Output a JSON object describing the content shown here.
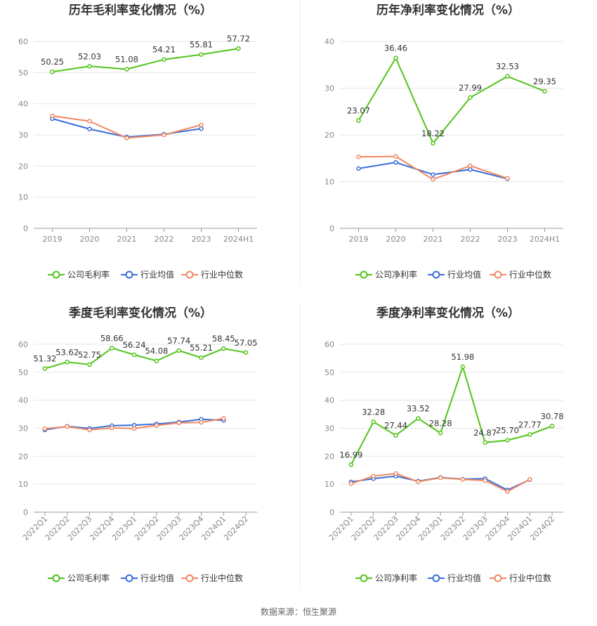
{
  "colors": {
    "company": "#52c41a",
    "industry_avg": "#3a6fd8",
    "industry_median": "#f08862"
  },
  "footer": {
    "source": "数据来源：恒生聚源"
  },
  "chart_data": [
    {
      "type": "line",
      "title": "历年毛利率变化情况（%）",
      "categories": [
        "2019",
        "2020",
        "2021",
        "2022",
        "2023",
        "2024H1"
      ],
      "ylim": [
        0,
        60
      ],
      "yticks": [
        0,
        10,
        20,
        30,
        40,
        50,
        60
      ],
      "grid": true,
      "legend_position": "bottom",
      "series": [
        {
          "name": "公司毛利率",
          "values": [
            50.25,
            52.03,
            51.08,
            54.21,
            55.81,
            57.72
          ],
          "labels": [
            "50.25",
            "52.03",
            "51.08",
            "54.21",
            "55.81",
            "57.72"
          ]
        },
        {
          "name": "行业均值",
          "values": [
            35.2,
            31.9,
            29.3,
            30.2,
            32.0,
            null
          ]
        },
        {
          "name": "行业中位数",
          "values": [
            36.1,
            34.4,
            29.0,
            30.0,
            33.2,
            null
          ]
        }
      ]
    },
    {
      "type": "line",
      "title": "历年净利率变化情况（%）",
      "categories": [
        "2019",
        "2020",
        "2021",
        "2022",
        "2023",
        "2024H1"
      ],
      "ylim": [
        0,
        40
      ],
      "yticks": [
        0,
        10,
        20,
        30,
        40
      ],
      "grid": true,
      "legend_position": "bottom",
      "series": [
        {
          "name": "公司净利率",
          "values": [
            23.07,
            36.46,
            18.22,
            27.99,
            32.53,
            29.35
          ],
          "labels": [
            "23.07",
            "36.46",
            "18.22",
            "27.99",
            "32.53",
            "29.35"
          ]
        },
        {
          "name": "行业均值",
          "values": [
            12.8,
            14.1,
            11.5,
            12.6,
            10.6,
            null
          ]
        },
        {
          "name": "行业中位数",
          "values": [
            15.3,
            15.4,
            10.5,
            13.4,
            10.7,
            null
          ]
        }
      ]
    },
    {
      "type": "line",
      "title": "季度毛利率变化情况（%）",
      "categories": [
        "2022Q1",
        "2022Q2",
        "2022Q3",
        "2022Q4",
        "2023Q1",
        "2023Q2",
        "2023Q3",
        "2023Q4",
        "2024Q1",
        "2024Q2"
      ],
      "ylim": [
        0,
        60
      ],
      "yticks": [
        0,
        10,
        20,
        30,
        40,
        50,
        60
      ],
      "grid": true,
      "legend_position": "bottom",
      "series": [
        {
          "name": "公司毛利率",
          "values": [
            51.32,
            53.62,
            52.75,
            58.66,
            56.24,
            54.08,
            57.74,
            55.21,
            58.45,
            57.05
          ],
          "labels": [
            "51.32",
            "53.62",
            "52.75",
            "58.66",
            "56.24",
            "54.08",
            "57.74",
            "55.21",
            "58.45",
            "57.05"
          ]
        },
        {
          "name": "行业均值",
          "values": [
            29.4,
            30.7,
            29.9,
            30.9,
            31.1,
            31.5,
            32.2,
            33.2,
            32.8,
            null
          ]
        },
        {
          "name": "行业中位数",
          "values": [
            29.8,
            30.6,
            29.4,
            30.1,
            29.9,
            31.0,
            31.9,
            32.1,
            33.5,
            null
          ]
        }
      ]
    },
    {
      "type": "line",
      "title": "季度净利率变化情况（%）",
      "categories": [
        "2022Q1",
        "2022Q2",
        "2022Q3",
        "2022Q4",
        "2023Q1",
        "2023Q2",
        "2023Q3",
        "2023Q4",
        "2024Q1",
        "2024Q2"
      ],
      "ylim": [
        0,
        60
      ],
      "yticks": [
        0,
        10,
        20,
        30,
        40,
        50,
        60
      ],
      "grid": true,
      "legend_position": "bottom",
      "series": [
        {
          "name": "公司净利率",
          "values": [
            16.99,
            32.28,
            27.44,
            33.52,
            28.28,
            51.98,
            24.87,
            25.7,
            27.77,
            30.78
          ],
          "labels": [
            "16.99",
            "32.28",
            "27.44",
            "33.52",
            "28.28",
            "51.98",
            "24.87",
            "25.70",
            "27.77",
            "30.78"
          ]
        },
        {
          "name": "行业均值",
          "values": [
            10.8,
            12.0,
            12.9,
            11.1,
            12.4,
            11.8,
            12.0,
            7.9,
            11.6,
            null
          ]
        },
        {
          "name": "行业中位数",
          "values": [
            10.2,
            12.9,
            13.8,
            10.9,
            12.3,
            11.7,
            11.3,
            7.4,
            11.7,
            null
          ]
        }
      ]
    }
  ]
}
